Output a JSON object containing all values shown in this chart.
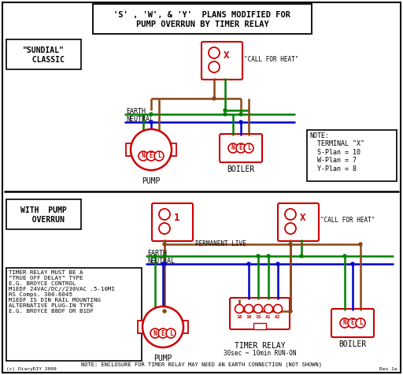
{
  "bg_color": "#ffffff",
  "border_color": "#000000",
  "red_color": "#cc0000",
  "green_color": "#008000",
  "blue_color": "#0000cc",
  "brown_color": "#8B4513",
  "title_line1": "'S' , 'W', & 'Y'  PLANS MODIFIED FOR",
  "title_line2": "PUMP OVERRUN BY TIMER RELAY",
  "sundial_label": "\"SUNDIAL\"\n  CLASSIC",
  "pump_overrun_label": "WITH  PUMP\n  OVERRUN",
  "note_text": "NOTE:\n  TERMINAL \"X\"\n  S-Plan = 10\n  W-Plan = 7\n  Y-Plan = 8",
  "relay_box_text": "TIMER RELAY MUST BE A\n\"TRUE OFF DELAY\" TYPE\nE.G. BROYCE CONTROL\nM1EDF 24VAC/DC//230VAC .5-10MI\nRS Comps. 300-6045\nM1EDF IS DIN RAIL MOUNTING\nALTERNATIVE PLUG-IN TYPE\nE.G. BROYCE B8DF OR B1DF",
  "call_for_heat": "\"CALL FOR HEAT\"",
  "permanent_live": "PERMANENT LIVE",
  "earth_label": "EARTH",
  "neutral_label": "NEUTRAL",
  "timer_note": "NOTE: ENCLOSURE FOR TIMER RELAY MAY NEED AN EARTH CONNECTION (NOT SHOWN)",
  "timer_relay_label": "TIMER RELAY",
  "timer_relay_sub": "30sec ~ 10min RUN-ON",
  "pump_label": "PUMP",
  "boiler_label": "BOILER",
  "copyright": "(c) DiaryDIY 2009",
  "rev": "Rev 1a"
}
